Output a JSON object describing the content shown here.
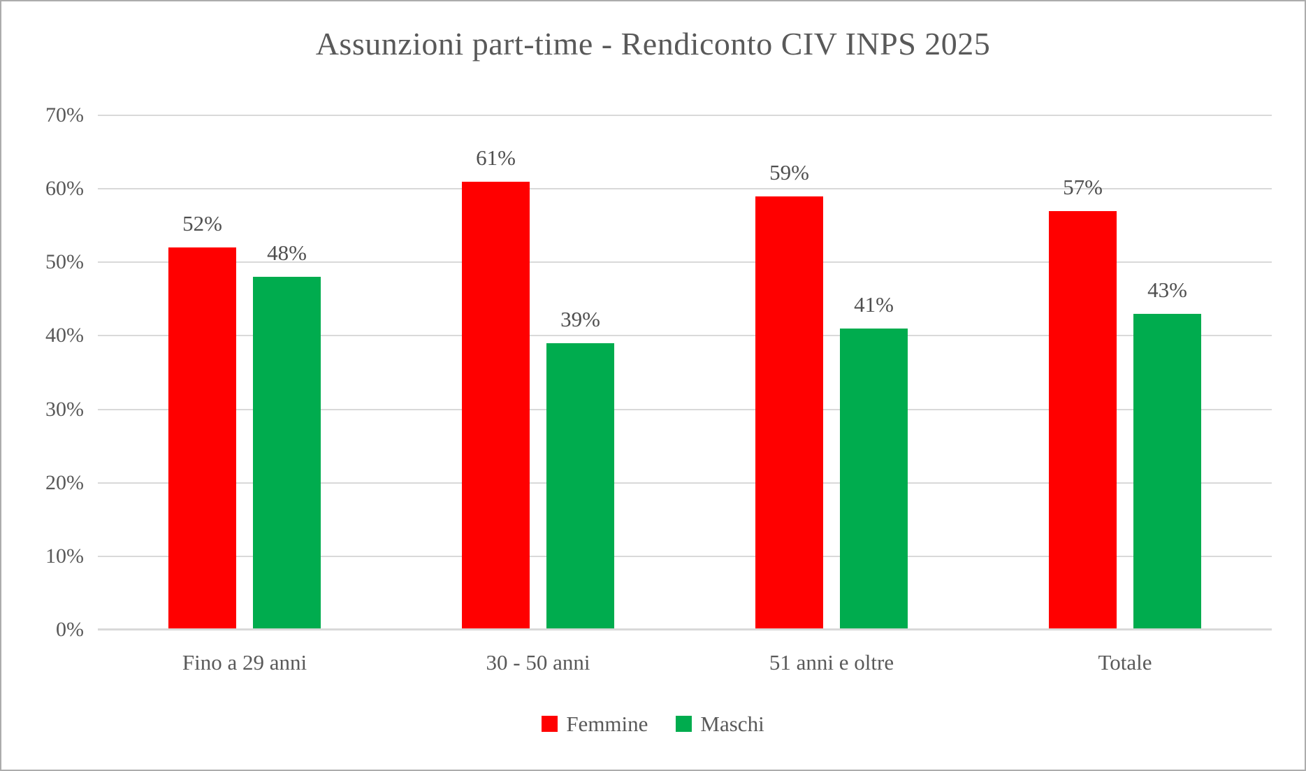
{
  "chart_data": {
    "type": "bar",
    "title": "Assunzioni part-time - Rendiconto CIV INPS 2025",
    "categories": [
      "Fino a 29 anni",
      "30 - 50 anni",
      "51 anni e oltre",
      "Totale"
    ],
    "series": [
      {
        "name": "Femmine",
        "color": "#ff0000",
        "values": [
          52,
          61,
          59,
          57
        ],
        "data_labels": [
          "52%",
          "61%",
          "59%",
          "57%"
        ]
      },
      {
        "name": "Maschi",
        "color": "#00ac4e",
        "values": [
          48,
          39,
          41,
          43
        ],
        "data_labels": [
          "48%",
          "39%",
          "41%",
          "43%"
        ]
      }
    ],
    "xlabel": "",
    "ylabel": "",
    "ylim": [
      0,
      70
    ],
    "ytick_step": 10,
    "ytick_labels": [
      "0%",
      "10%",
      "20%",
      "30%",
      "40%",
      "50%",
      "60%",
      "70%"
    ],
    "grid": "horizontal-only",
    "legend_position": "bottom-center",
    "data_labels_visible": true
  },
  "style_colors": {
    "text_gray": "#595959",
    "gridline_gray": "#d9d9d9",
    "frame_border_gray": "#acacac",
    "background": "#ffffff"
  }
}
